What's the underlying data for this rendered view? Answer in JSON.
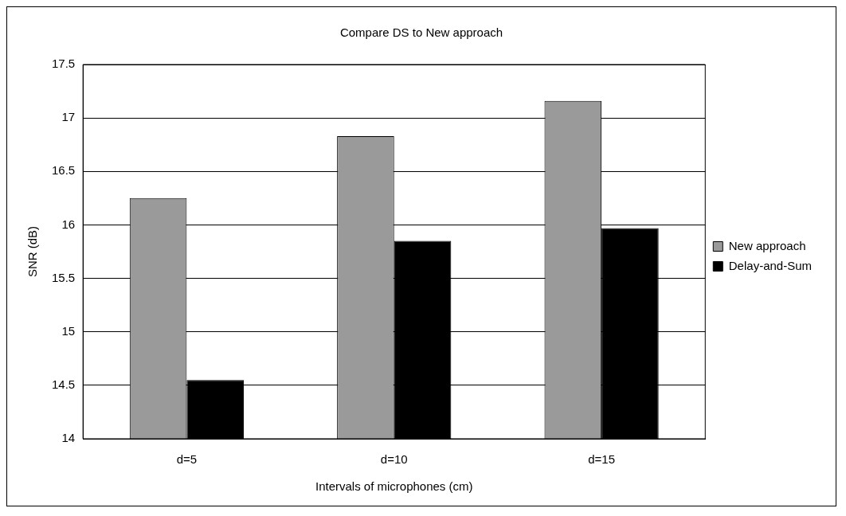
{
  "chart_data": {
    "type": "bar",
    "title": "Compare DS to New approach",
    "xlabel": "Intervals of microphones (cm)",
    "ylabel": "SNR (dB)",
    "categories": [
      "d=5",
      "d=10",
      "d=15"
    ],
    "series": [
      {
        "name": "New approach",
        "color": "#9a9a9a",
        "values": [
          16.25,
          16.83,
          17.16
        ]
      },
      {
        "name": "Delay-and-Sum",
        "color": "#000000",
        "values": [
          14.55,
          15.85,
          15.97
        ]
      }
    ],
    "ylim": [
      14,
      17.5
    ],
    "yticks": [
      14,
      14.5,
      15,
      15.5,
      16,
      16.5,
      17,
      17.5
    ],
    "grid": "y",
    "legend": "right"
  }
}
